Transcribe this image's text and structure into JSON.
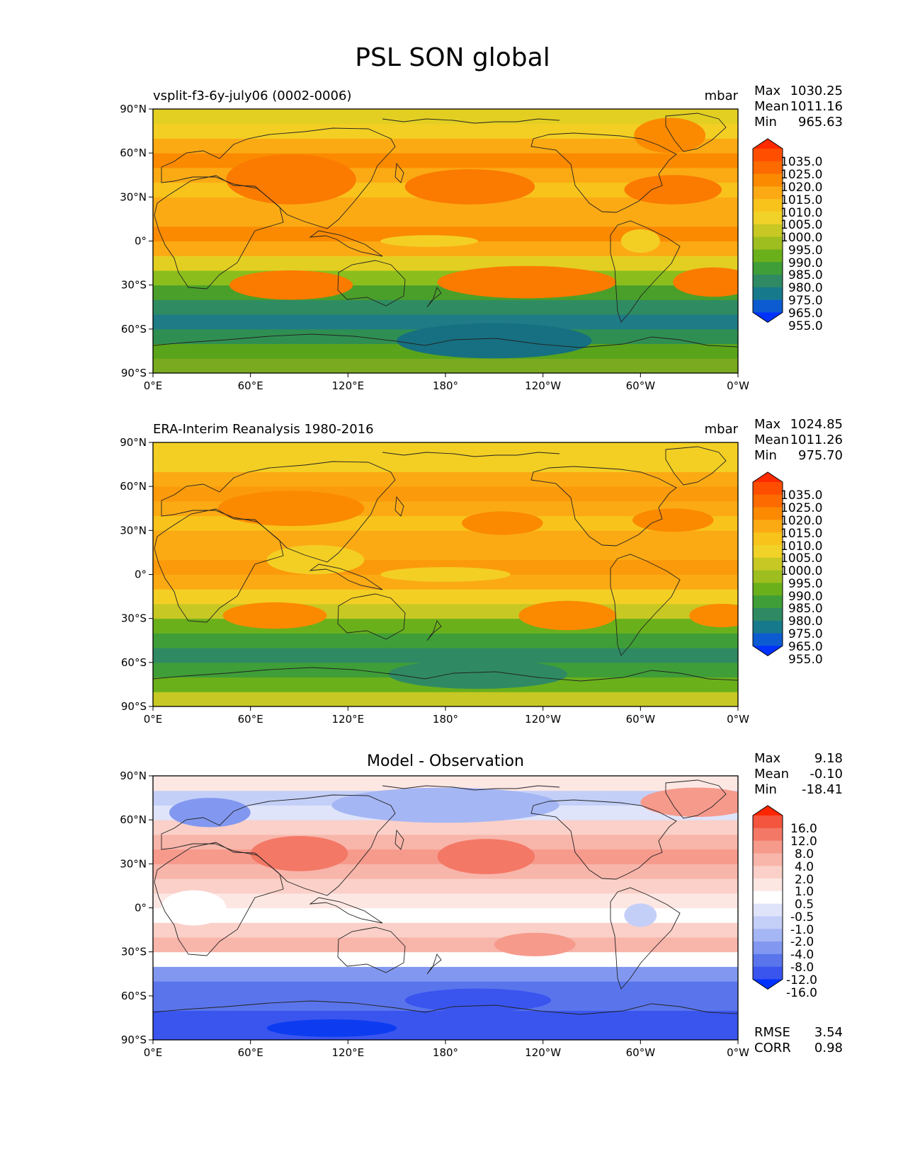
{
  "title": "PSL SON global",
  "x_ticks": [
    "0°E",
    "60°E",
    "120°E",
    "180°",
    "120°W",
    "60°W",
    "0°W"
  ],
  "y_ticks": [
    "90°N",
    "60°N",
    "30°N",
    "0°",
    "30°S",
    "60°S",
    "90°S"
  ],
  "panels": [
    {
      "left_title": "vsplit-f3-6y-july06 (0002-0006)",
      "center_title": "",
      "units": "mbar",
      "stats": [
        {
          "label": "Max",
          "value": "1030.25"
        },
        {
          "label": "Mean",
          "value": "1011.16"
        },
        {
          "label": "Min",
          "value": "965.63"
        }
      ],
      "colorbar": {
        "levels": [
          "1035.0",
          "1025.0",
          "1020.0",
          "1015.0",
          "1010.0",
          "1005.0",
          "1000.0",
          "995.0",
          "990.0",
          "985.0",
          "980.0",
          "975.0",
          "965.0",
          "955.0"
        ],
        "colors": [
          "#ff2a00",
          "#ff4e00",
          "#fc6a00",
          "#fb8a00",
          "#fbaa14",
          "#f8c41c",
          "#f1d228",
          "#c7c823",
          "#9ebe1f",
          "#6ab01b",
          "#3f9e37",
          "#2f8a63",
          "#177a8c",
          "#0d5bd1",
          "#0032ff"
        ]
      },
      "map": {
        "lat_bands": [
          "#79aa1f",
          "#5aa41b",
          "#2f8f52",
          "#1f7b86",
          "#2f8c62",
          "#4a9f2a",
          "#8bbe1d",
          "#e3cf22",
          "#fbaa14",
          "#fb8a00",
          "#fbaa14",
          "#fbaa14",
          "#f8c41c",
          "#fbaa14",
          "#fb8a00",
          "#fbaa14",
          "#f3cf24",
          "#e3cf22"
        ],
        "blobs": [
          {
            "lon": 85,
            "lat": 42,
            "rlon": 40,
            "rlat": 17,
            "color": "#fb7a00"
          },
          {
            "lon": 195,
            "lat": 37,
            "rlon": 40,
            "rlat": 12,
            "color": "#fb7a00"
          },
          {
            "lon": 320,
            "lat": 35,
            "rlon": 30,
            "rlat": 10,
            "color": "#fb7a00"
          },
          {
            "lon": 85,
            "lat": -30,
            "rlon": 38,
            "rlat": 10,
            "color": "#fb7a00"
          },
          {
            "lon": 230,
            "lat": -28,
            "rlon": 55,
            "rlat": 11,
            "color": "#fb7a00"
          },
          {
            "lon": 345,
            "lat": -28,
            "rlon": 25,
            "rlat": 10,
            "color": "#fb7a00"
          },
          {
            "lon": 318,
            "lat": 72,
            "rlon": 22,
            "rlat": 12,
            "color": "#fb8a00"
          },
          {
            "lon": 170,
            "lat": 0,
            "rlon": 30,
            "rlat": 4,
            "color": "#f3cf24"
          },
          {
            "lon": 300,
            "lat": 0,
            "rlon": 12,
            "rlat": 8,
            "color": "#f3cf24"
          },
          {
            "lon": 210,
            "lat": -68,
            "rlon": 60,
            "rlat": 12,
            "color": "#167081"
          }
        ]
      }
    },
    {
      "left_title": "ERA-Interim Reanalysis 1980-2016",
      "center_title": "",
      "units": "mbar",
      "stats": [
        {
          "label": "Max",
          "value": "1024.85"
        },
        {
          "label": "Mean",
          "value": "1011.26"
        },
        {
          "label": "Min",
          "value": "975.70"
        }
      ],
      "colorbar": {
        "levels": [
          "1035.0",
          "1025.0",
          "1020.0",
          "1015.0",
          "1010.0",
          "1005.0",
          "1000.0",
          "995.0",
          "990.0",
          "985.0",
          "980.0",
          "975.0",
          "965.0",
          "955.0"
        ],
        "colors": [
          "#ff2a00",
          "#ff4e00",
          "#fc6a00",
          "#fb8a00",
          "#fbaa14",
          "#f8c41c",
          "#f1d228",
          "#c7c823",
          "#9ebe1f",
          "#6ab01b",
          "#3f9e37",
          "#2f8a63",
          "#177a8c",
          "#0d5bd1",
          "#0032ff"
        ]
      },
      "map": {
        "lat_bands": [
          "#c7c823",
          "#6ab01b",
          "#3f9e37",
          "#2f8a63",
          "#3f9e37",
          "#6ab01b",
          "#c7c823",
          "#f3cf24",
          "#fbaa14",
          "#fb9a0a",
          "#fbaa14",
          "#fbaa14",
          "#f8c41c",
          "#fbaa14",
          "#fb9a0a",
          "#fbaa14",
          "#f3cf24",
          "#f3cf24"
        ],
        "blobs": [
          {
            "lon": 85,
            "lat": 45,
            "rlon": 45,
            "rlat": 12,
            "color": "#fb8a00"
          },
          {
            "lon": 215,
            "lat": 35,
            "rlon": 25,
            "rlat": 8,
            "color": "#fb8a00"
          },
          {
            "lon": 320,
            "lat": 37,
            "rlon": 25,
            "rlat": 8,
            "color": "#fb8a00"
          },
          {
            "lon": 75,
            "lat": -28,
            "rlon": 32,
            "rlat": 9,
            "color": "#fb8a00"
          },
          {
            "lon": 255,
            "lat": -28,
            "rlon": 30,
            "rlat": 10,
            "color": "#fb8a00"
          },
          {
            "lon": 350,
            "lat": -28,
            "rlon": 20,
            "rlat": 8,
            "color": "#fb8a00"
          },
          {
            "lon": 100,
            "lat": 10,
            "rlon": 30,
            "rlat": 10,
            "color": "#f3cf24"
          },
          {
            "lon": 180,
            "lat": 0,
            "rlon": 40,
            "rlat": 5,
            "color": "#f3cf24"
          },
          {
            "lon": 200,
            "lat": -68,
            "rlon": 55,
            "rlat": 10,
            "color": "#2f8a63"
          }
        ]
      }
    },
    {
      "left_title": "",
      "center_title": "Model - Observation",
      "units": "",
      "stats": [
        {
          "label": "Max",
          "value": "9.18"
        },
        {
          "label": "Mean",
          "value": "-0.10"
        },
        {
          "label": "Min",
          "value": "-18.41"
        }
      ],
      "extra_stats": [
        {
          "label": "RMSE",
          "value": "3.54"
        },
        {
          "label": "CORR",
          "value": "0.98"
        }
      ],
      "colorbar": {
        "levels": [
          "16.0",
          "12.0",
          "8.0",
          "4.0",
          "2.0",
          "1.0",
          "0.5",
          "-0.5",
          "-1.0",
          "-2.0",
          "-4.0",
          "-8.0",
          "-12.0",
          "-16.0"
        ],
        "colors": [
          "#ff2600",
          "#f4553e",
          "#f47866",
          "#f69a8c",
          "#f8b5aa",
          "#fad0c8",
          "#fde7e3",
          "#ffffff",
          "#dfe4fb",
          "#c4cff8",
          "#a5b6f4",
          "#8298f0",
          "#5a75eb",
          "#3a55ee",
          "#0032ff"
        ]
      },
      "map": {
        "lat_bands": [
          "#3a55ee",
          "#3a55ee",
          "#5a75eb",
          "#5a75eb",
          "#8298f0",
          "#ffffff",
          "#f8b5aa",
          "#fad0c8",
          "#ffffff",
          "#fde7e3",
          "#fad0c8",
          "#f8b5aa",
          "#f69a8c",
          "#f8b5aa",
          "#fad0c8",
          "#dfe4fb",
          "#c4cff8",
          "#fde7e3"
        ],
        "blobs": [
          {
            "lon": 110,
            "lat": -82,
            "rlon": 40,
            "rlat": 6,
            "color": "#0d3cf0"
          },
          {
            "lon": 200,
            "lat": -63,
            "rlon": 45,
            "rlat": 8,
            "color": "#3a55ee"
          },
          {
            "lon": 90,
            "lat": 37,
            "rlon": 30,
            "rlat": 12,
            "color": "#f47866"
          },
          {
            "lon": 205,
            "lat": 35,
            "rlon": 30,
            "rlat": 12,
            "color": "#f47866"
          },
          {
            "lon": 235,
            "lat": -25,
            "rlon": 25,
            "rlat": 8,
            "color": "#f69a8c"
          },
          {
            "lon": 335,
            "lat": 72,
            "rlon": 35,
            "rlat": 10,
            "color": "#f69a8c"
          },
          {
            "lon": 35,
            "lat": 65,
            "rlon": 25,
            "rlat": 10,
            "color": "#8298f0"
          },
          {
            "lon": 180,
            "lat": 70,
            "rlon": 70,
            "rlat": 12,
            "color": "#a5b6f4"
          },
          {
            "lon": 300,
            "lat": -5,
            "rlon": 10,
            "rlat": 8,
            "color": "#c4cff8"
          },
          {
            "lon": 25,
            "lat": 0,
            "rlon": 20,
            "rlat": 12,
            "color": "#ffffff"
          }
        ]
      }
    }
  ]
}
